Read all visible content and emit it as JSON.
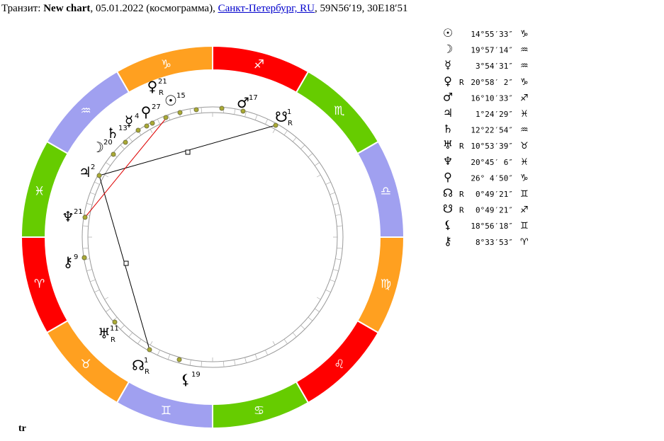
{
  "header": {
    "prefix": "Транзит:",
    "chart_name": "New chart",
    "date_text": ", 05.01.2022 (космограмма),",
    "location": "Санкт-Петербург, RU",
    "coords": ", 59N56′19, 30E18′51"
  },
  "wheel": {
    "signs": [
      "♈",
      "♉",
      "♊",
      "♋",
      "♌",
      "♍",
      "♎",
      "♏",
      "♐",
      "♑",
      "♒",
      "♓"
    ],
    "planets": [
      {
        "glyph": "♀",
        "degree": "21",
        "retro": "R"
      },
      {
        "glyph": "☉",
        "degree": "15"
      },
      {
        "glyph": "♂",
        "degree": "17"
      },
      {
        "glyph": "☋",
        "degree": "1",
        "retro": "R"
      },
      {
        "glyph": "⚲",
        "degree": "27"
      },
      {
        "glyph": "☿",
        "degree": "4"
      },
      {
        "glyph": "♄",
        "degree": "13"
      },
      {
        "glyph": "☽",
        "degree": "20"
      },
      {
        "glyph": "♃",
        "degree": "2"
      },
      {
        "glyph": "♆",
        "degree": "21"
      },
      {
        "glyph": "⚷",
        "degree": "9"
      },
      {
        "glyph": "♅",
        "degree": "11",
        "retro": "R"
      },
      {
        "glyph": "☊",
        "degree": "1",
        "retro": "R"
      },
      {
        "glyph": "⚸",
        "degree": "19"
      }
    ]
  },
  "table": {
    "rows": [
      {
        "glyph": "☉",
        "position": "14°55′33″",
        "sign": "♑"
      },
      {
        "glyph": "☽",
        "position": "19°57′14″",
        "sign": "♒"
      },
      {
        "glyph": "☿",
        "position": "3°54′31″",
        "sign": "♒"
      },
      {
        "glyph": "♀",
        "retro": "R",
        "position": "20°58′ 2″",
        "sign": "♑"
      },
      {
        "glyph": "♂",
        "position": "16°10′33″",
        "sign": "♐"
      },
      {
        "glyph": "♃",
        "position": "1°24′29″",
        "sign": "♓"
      },
      {
        "glyph": "♄",
        "position": "12°22′54″",
        "sign": "♒"
      },
      {
        "glyph": "♅",
        "retro": "R",
        "position": "10°53′39″",
        "sign": "♉"
      },
      {
        "glyph": "♆",
        "position": "20°45′ 6″",
        "sign": "♓"
      },
      {
        "glyph": "⚲",
        "position": "26° 4′50″",
        "sign": "♑"
      },
      {
        "glyph": "☊",
        "retro": "R",
        "position": "0°49′21″",
        "sign": "♊"
      },
      {
        "glyph": "☋",
        "retro": "R",
        "position": "0°49′21″",
        "sign": "♐"
      },
      {
        "glyph": "⚸",
        "position": "18°56′18″",
        "sign": "♊"
      },
      {
        "glyph": "⚷",
        "position": "8°33′53″",
        "sign": "♈"
      }
    ]
  },
  "footer": "tr"
}
